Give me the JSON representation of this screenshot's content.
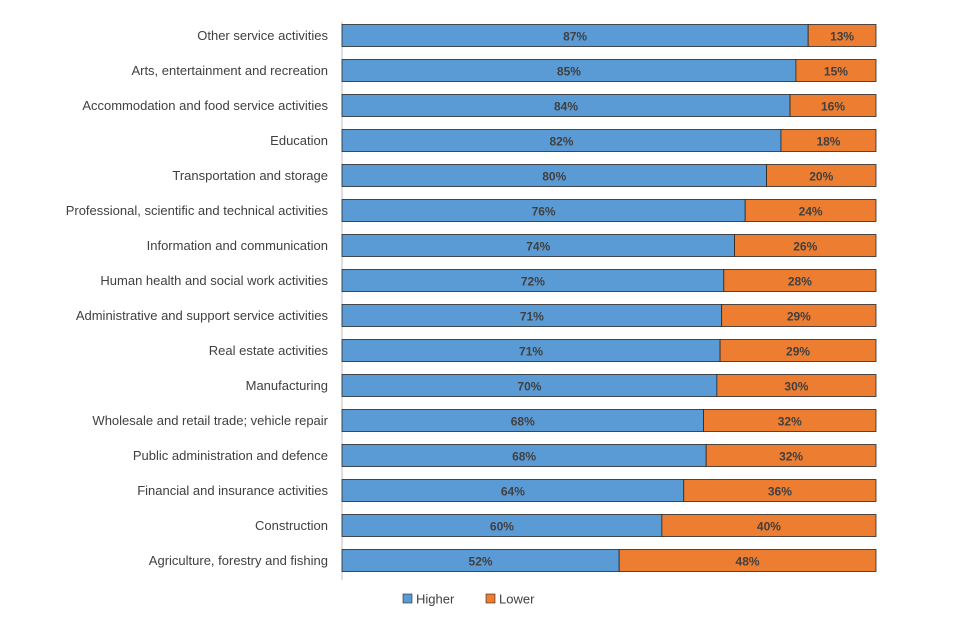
{
  "chart_data": {
    "type": "bar",
    "orientation": "horizontal",
    "stacked": true,
    "percent_stacked": true,
    "categories": [
      "Other service activities",
      "Arts, entertainment and recreation",
      "Accommodation and food service activities",
      "Education",
      "Transportation and storage",
      "Professional, scientific and technical activities",
      "Information and communication",
      "Human health and social work activities",
      "Administrative and support service activities",
      "Real estate activities",
      "Manufacturing",
      "Wholesale and retail trade; vehicle repair",
      "Public administration and defence",
      "Financial and insurance activities",
      "Construction",
      "Agriculture, forestry and fishing"
    ],
    "series": [
      {
        "name": "Higher",
        "color": "#5B9BD5",
        "values": [
          87.3,
          85.0,
          83.9,
          82.2,
          79.5,
          75.5,
          73.5,
          71.5,
          71.1,
          70.8,
          70.2,
          67.7,
          68.2,
          64.0,
          59.9,
          51.9
        ],
        "labels": [
          "87%",
          "85%",
          "84%",
          "82%",
          "80%",
          "76%",
          "74%",
          "72%",
          "71%",
          "71%",
          "70%",
          "68%",
          "68%",
          "64%",
          "60%",
          "52%"
        ]
      },
      {
        "name": "Lower",
        "color": "#ED7D31",
        "values": [
          12.7,
          15.0,
          16.1,
          17.8,
          20.5,
          24.5,
          26.5,
          28.5,
          28.9,
          29.2,
          29.8,
          32.3,
          31.8,
          36.0,
          40.1,
          48.1
        ],
        "labels": [
          "13%",
          "15%",
          "16%",
          "18%",
          "20%",
          "24%",
          "26%",
          "28%",
          "29%",
          "29%",
          "30%",
          "32%",
          "32%",
          "36%",
          "40%",
          "48%"
        ]
      }
    ],
    "xlim": [
      0,
      100
    ],
    "title": "",
    "xlabel": "",
    "ylabel": "",
    "grid": false,
    "legend_position": "bottom"
  }
}
